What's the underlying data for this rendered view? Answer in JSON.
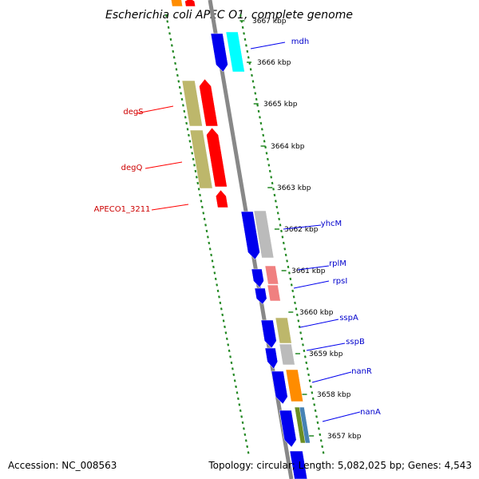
{
  "title": "Escherichia coli APEC O1, complete genome",
  "accession_text": "Accession: NC_008563",
  "summary_text": "Topology: circular; Length: 5,082,025 bp; Genes: 4,543",
  "tick_labels": [
    "3667 kbp",
    "3666 kbp",
    "3665 kbp",
    "3664 kbp",
    "3663 kbp",
    "3662 kbp",
    "3661 kbp",
    "3660 kbp",
    "3659 kbp",
    "3658 kbp",
    "3657 kbp"
  ],
  "genes_forward": [
    "degS",
    "degQ",
    "APECO1_3211"
  ],
  "genes_reverse": [
    "mdh",
    "yhcM",
    "rplM",
    "rpsI",
    "sspA",
    "sspB",
    "nanR",
    "nanA"
  ],
  "colors": {
    "backbone": "#888888",
    "tick_green": "#228822",
    "cds_red": "#ff0000",
    "cds_blue": "#0000ee",
    "olive": "#bdb76b",
    "cyan": "#00ffff",
    "light_gray": "#bbbbbb",
    "pink": "#f08080",
    "orange": "#ff8c00",
    "teal": "#4682b4",
    "dark_olive": "#6b8e23"
  }
}
